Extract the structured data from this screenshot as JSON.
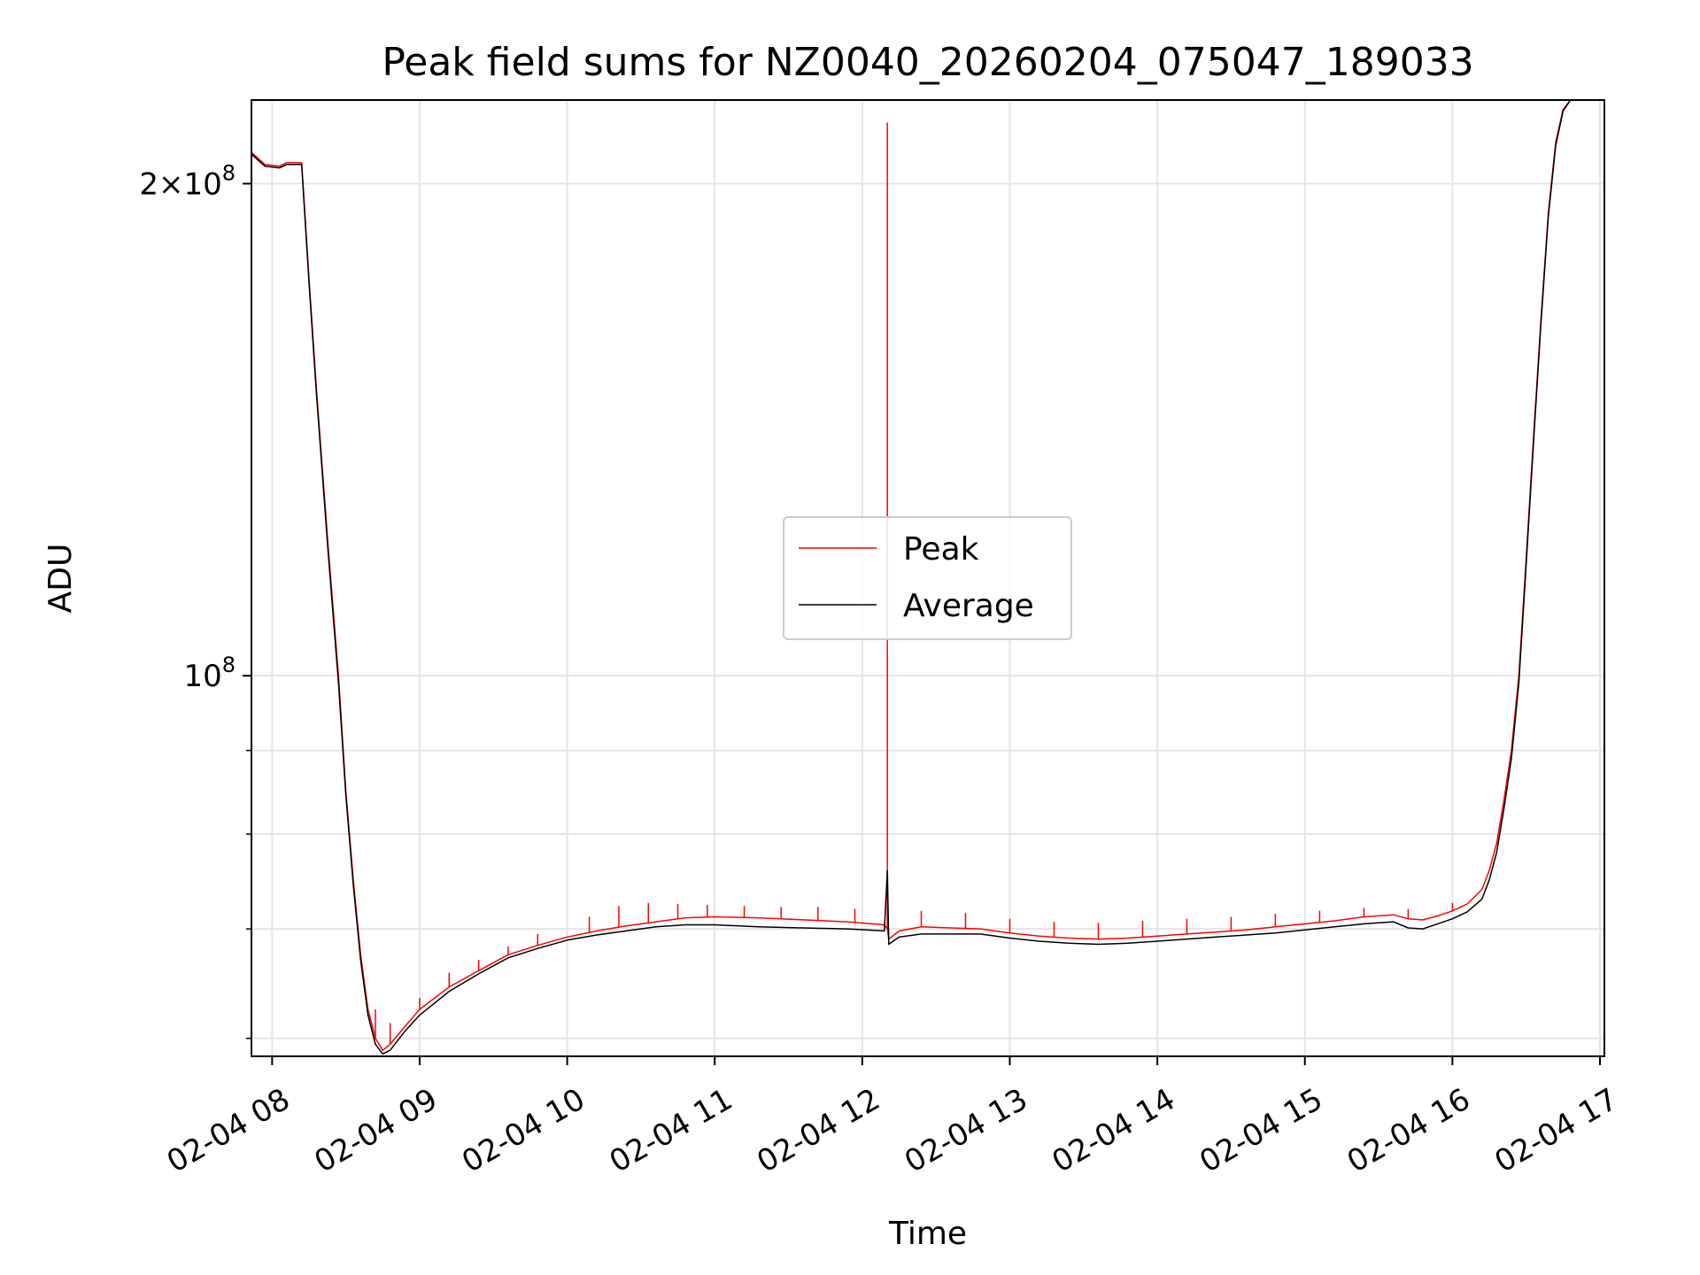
{
  "chart_data": {
    "type": "line",
    "title": "Peak field sums for NZ0040_20260204_075047_189033",
    "xlabel": "Time",
    "ylabel": "ADU",
    "yscale": "log",
    "xlim_hours": [
      7.86,
      17.03
    ],
    "ylim": [
      58500000,
      225000000
    ],
    "grid": true,
    "legend_position": "center",
    "x_ticks": [
      {
        "hour": 8,
        "label": "02-04 08"
      },
      {
        "hour": 9,
        "label": "02-04 09"
      },
      {
        "hour": 10,
        "label": "02-04 10"
      },
      {
        "hour": 11,
        "label": "02-04 11"
      },
      {
        "hour": 12,
        "label": "02-04 12"
      },
      {
        "hour": 13,
        "label": "02-04 13"
      },
      {
        "hour": 14,
        "label": "02-04 14"
      },
      {
        "hour": 15,
        "label": "02-04 15"
      },
      {
        "hour": 16,
        "label": "02-04 16"
      },
      {
        "hour": 17,
        "label": "02-04 17"
      }
    ],
    "y_major_ticks": [
      {
        "value": 100000000,
        "base": "10",
        "exp": "8"
      },
      {
        "value": 200000000,
        "base": "2×10",
        "exp": "8"
      }
    ],
    "y_minor_ticks": [
      60000000,
      70000000,
      80000000,
      90000000
    ],
    "series": [
      {
        "name": "Peak",
        "color": "#ff0000",
        "points": [
          [
            7.86,
            209000000
          ],
          [
            7.95,
            205500000
          ],
          [
            8.05,
            205000000
          ],
          [
            8.1,
            206000000
          ],
          [
            8.2,
            206000000
          ],
          [
            8.25,
            175000000
          ],
          [
            8.3,
            150000000
          ],
          [
            8.38,
            120000000
          ],
          [
            8.45,
            100000000
          ],
          [
            8.5,
            85000000
          ],
          [
            8.55,
            75000000
          ],
          [
            8.6,
            67500000
          ],
          [
            8.65,
            62500000
          ],
          [
            8.7,
            60000000
          ],
          [
            8.75,
            59000000
          ],
          [
            8.8,
            59500000
          ],
          [
            8.9,
            61000000
          ],
          [
            9.0,
            62500000
          ],
          [
            9.2,
            64500000
          ],
          [
            9.4,
            66000000
          ],
          [
            9.6,
            67500000
          ],
          [
            9.8,
            68400000
          ],
          [
            10.0,
            69200000
          ],
          [
            10.2,
            69800000
          ],
          [
            10.4,
            70300000
          ],
          [
            10.6,
            70700000
          ],
          [
            10.8,
            71100000
          ],
          [
            11.0,
            71200000
          ],
          [
            11.3,
            71100000
          ],
          [
            11.6,
            70900000
          ],
          [
            11.9,
            70700000
          ],
          [
            12.15,
            70400000
          ],
          [
            12.17,
            70000000
          ],
          [
            12.18,
            69000000
          ],
          [
            12.25,
            69800000
          ],
          [
            12.4,
            70200000
          ],
          [
            12.6,
            70100000
          ],
          [
            12.8,
            70000000
          ],
          [
            13.0,
            69600000
          ],
          [
            13.2,
            69300000
          ],
          [
            13.4,
            69100000
          ],
          [
            13.6,
            69000000
          ],
          [
            13.8,
            69100000
          ],
          [
            14.0,
            69300000
          ],
          [
            14.2,
            69500000
          ],
          [
            14.4,
            69700000
          ],
          [
            14.6,
            69900000
          ],
          [
            14.8,
            70200000
          ],
          [
            15.0,
            70500000
          ],
          [
            15.2,
            70800000
          ],
          [
            15.4,
            71200000
          ],
          [
            15.6,
            71400000
          ],
          [
            15.7,
            71000000
          ],
          [
            15.8,
            70900000
          ],
          [
            15.9,
            71300000
          ],
          [
            16.0,
            71800000
          ],
          [
            16.1,
            72500000
          ],
          [
            16.2,
            74000000
          ],
          [
            16.25,
            76000000
          ],
          [
            16.3,
            79000000
          ],
          [
            16.35,
            84000000
          ],
          [
            16.4,
            90000000
          ],
          [
            16.45,
            100000000
          ],
          [
            16.5,
            118000000
          ],
          [
            16.55,
            140000000
          ],
          [
            16.6,
            165000000
          ],
          [
            16.65,
            192000000
          ],
          [
            16.7,
            212000000
          ],
          [
            16.75,
            222000000
          ],
          [
            16.8,
            225000000
          ],
          [
            17.03,
            225000000
          ]
        ],
        "spikes": [
          [
            8.7,
            62500000
          ],
          [
            8.8,
            61300000
          ],
          [
            9.0,
            63500000
          ],
          [
            9.2,
            65800000
          ],
          [
            9.4,
            67000000
          ],
          [
            9.6,
            68300000
          ],
          [
            9.8,
            69500000
          ],
          [
            10.15,
            71200000
          ],
          [
            10.35,
            72300000
          ],
          [
            10.55,
            72600000
          ],
          [
            10.75,
            72500000
          ],
          [
            10.95,
            72400000
          ],
          [
            11.2,
            72300000
          ],
          [
            11.45,
            72200000
          ],
          [
            11.7,
            72200000
          ],
          [
            11.95,
            72000000
          ],
          [
            12.17,
            218000000
          ],
          [
            12.4,
            71800000
          ],
          [
            12.7,
            71600000
          ],
          [
            13.0,
            71000000
          ],
          [
            13.3,
            70700000
          ],
          [
            13.6,
            70600000
          ],
          [
            13.9,
            70800000
          ],
          [
            14.2,
            71000000
          ],
          [
            14.5,
            71200000
          ],
          [
            14.8,
            71500000
          ],
          [
            15.1,
            71800000
          ],
          [
            15.4,
            72100000
          ],
          [
            15.7,
            72000000
          ],
          [
            16.0,
            72600000
          ]
        ]
      },
      {
        "name": "Average",
        "color": "#000000",
        "points": [
          [
            7.86,
            208500000
          ],
          [
            7.95,
            205000000
          ],
          [
            8.05,
            204500000
          ],
          [
            8.1,
            205500000
          ],
          [
            8.2,
            205500000
          ],
          [
            8.25,
            174000000
          ],
          [
            8.3,
            149000000
          ],
          [
            8.38,
            119000000
          ],
          [
            8.45,
            99000000
          ],
          [
            8.5,
            84500000
          ],
          [
            8.55,
            74500000
          ],
          [
            8.6,
            67000000
          ],
          [
            8.65,
            62000000
          ],
          [
            8.7,
            59500000
          ],
          [
            8.75,
            58700000
          ],
          [
            8.8,
            59000000
          ],
          [
            8.9,
            60600000
          ],
          [
            9.0,
            62000000
          ],
          [
            9.2,
            64100000
          ],
          [
            9.4,
            65700000
          ],
          [
            9.6,
            67200000
          ],
          [
            9.8,
            68100000
          ],
          [
            10.0,
            68900000
          ],
          [
            10.2,
            69400000
          ],
          [
            10.4,
            69800000
          ],
          [
            10.6,
            70200000
          ],
          [
            10.8,
            70400000
          ],
          [
            11.0,
            70400000
          ],
          [
            11.3,
            70200000
          ],
          [
            11.6,
            70100000
          ],
          [
            11.9,
            70000000
          ],
          [
            12.15,
            69800000
          ],
          [
            12.17,
            76000000
          ],
          [
            12.18,
            68500000
          ],
          [
            12.25,
            69200000
          ],
          [
            12.4,
            69500000
          ],
          [
            12.6,
            69500000
          ],
          [
            12.8,
            69500000
          ],
          [
            13.0,
            69100000
          ],
          [
            13.2,
            68800000
          ],
          [
            13.4,
            68600000
          ],
          [
            13.6,
            68500000
          ],
          [
            13.8,
            68600000
          ],
          [
            14.0,
            68800000
          ],
          [
            14.2,
            69000000
          ],
          [
            14.4,
            69200000
          ],
          [
            14.6,
            69400000
          ],
          [
            14.8,
            69600000
          ],
          [
            15.0,
            69900000
          ],
          [
            15.2,
            70200000
          ],
          [
            15.4,
            70500000
          ],
          [
            15.6,
            70700000
          ],
          [
            15.7,
            70100000
          ],
          [
            15.8,
            70000000
          ],
          [
            15.9,
            70500000
          ],
          [
            16.0,
            71000000
          ],
          [
            16.1,
            71700000
          ],
          [
            16.2,
            73000000
          ],
          [
            16.25,
            75000000
          ],
          [
            16.3,
            78000000
          ],
          [
            16.35,
            83000000
          ],
          [
            16.4,
            89000000
          ],
          [
            16.45,
            99000000
          ],
          [
            16.5,
            117000000
          ],
          [
            16.55,
            139000000
          ],
          [
            16.6,
            164000000
          ],
          [
            16.65,
            191000000
          ],
          [
            16.7,
            211000000
          ],
          [
            16.75,
            221500000
          ],
          [
            16.8,
            225000000
          ],
          [
            17.03,
            225000000
          ]
        ]
      }
    ]
  }
}
